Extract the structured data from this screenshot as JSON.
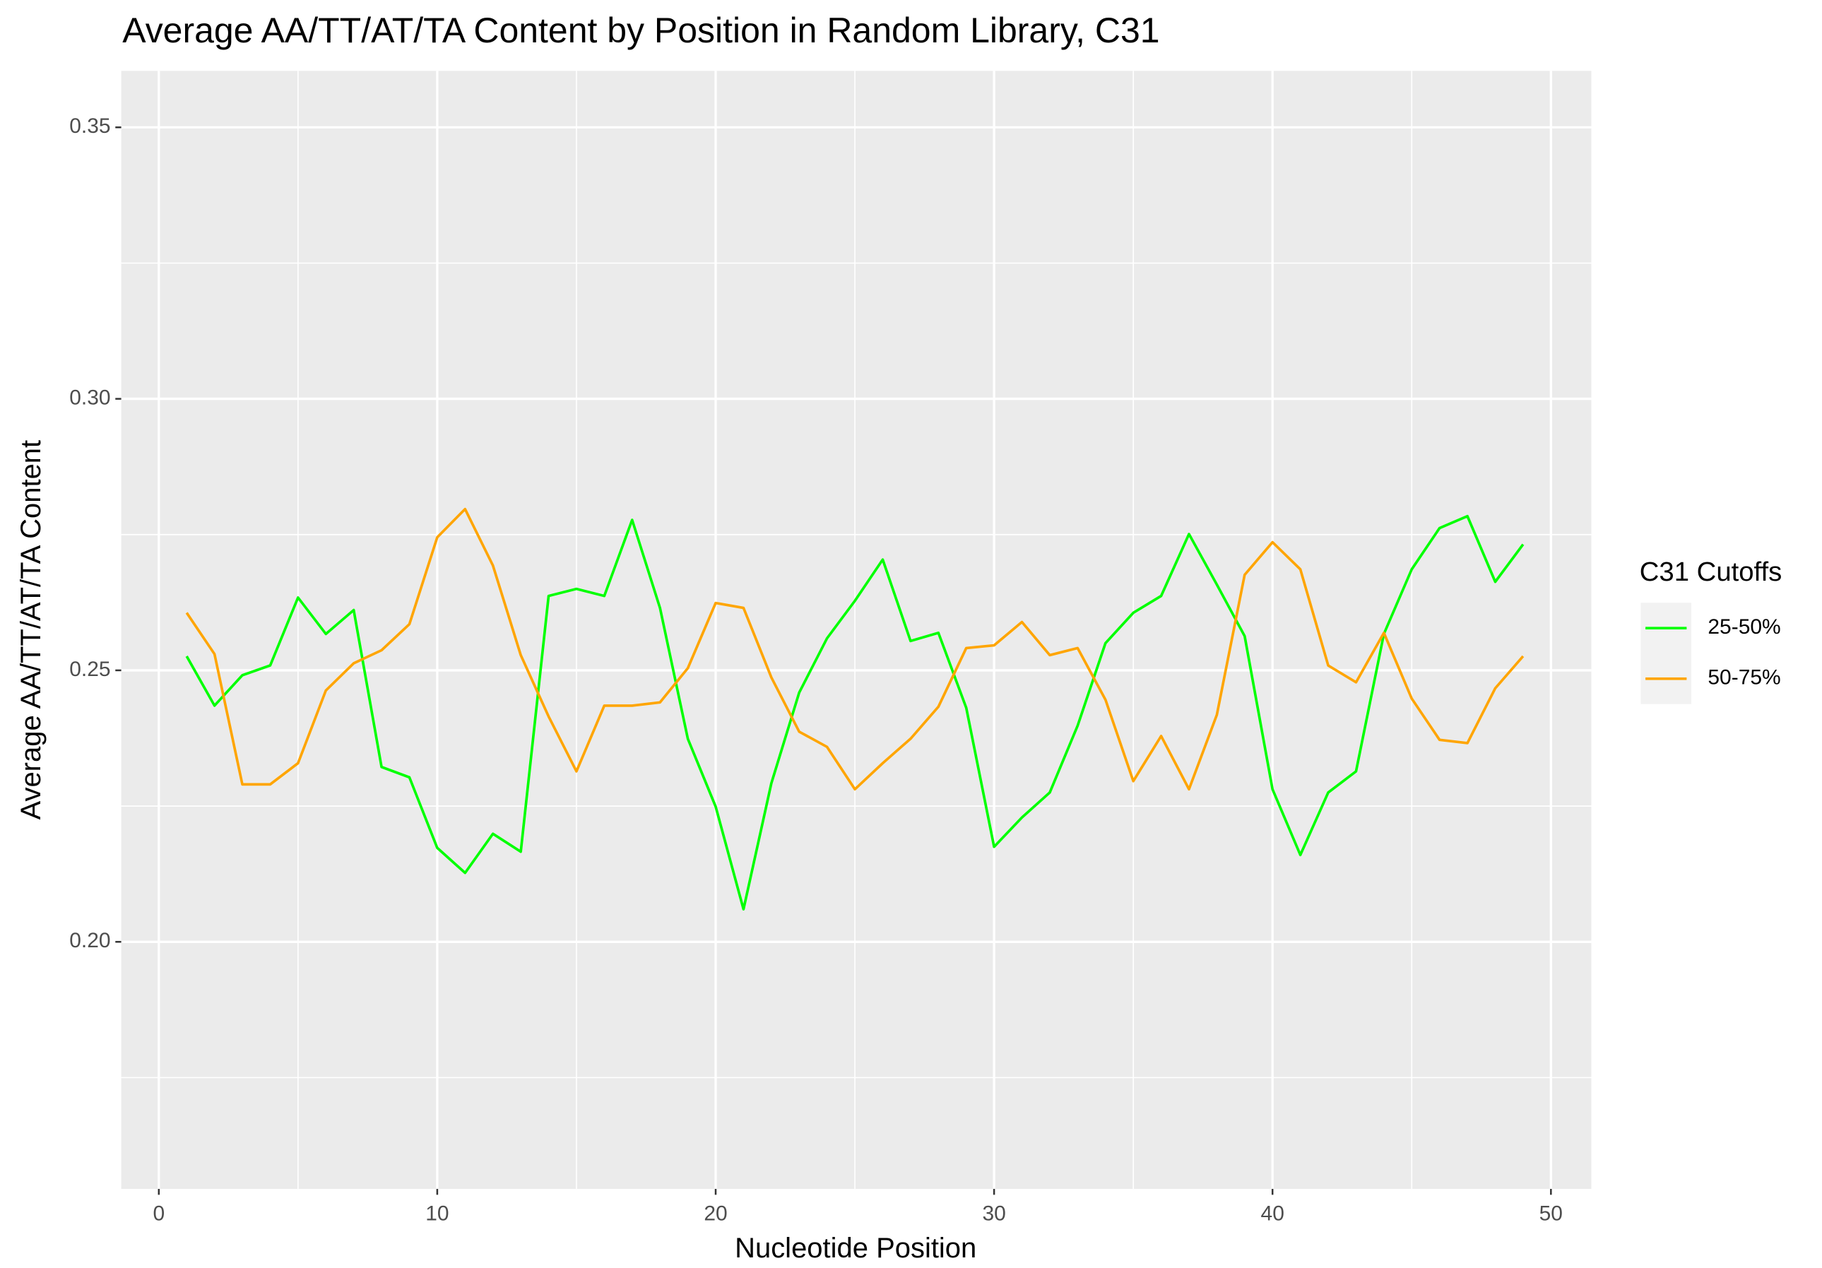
{
  "chart_data": {
    "type": "line",
    "title": "Average AA/TT/AT/TA Content by Position in Random Library, C31",
    "x_label": "Nucleotide Position",
    "y_label": "Average AA/TT/AT/TA Content",
    "legend_title": "C31 Cutoffs",
    "legend_position": "right",
    "grid": true,
    "background": "#ebebeb",
    "x": [
      1,
      2,
      3,
      4,
      5,
      6,
      7,
      8,
      9,
      10,
      11,
      12,
      13,
      14,
      15,
      16,
      17,
      18,
      19,
      20,
      21,
      22,
      23,
      24,
      25,
      26,
      27,
      28,
      29,
      30,
      31,
      32,
      33,
      34,
      35,
      36,
      37,
      38,
      39,
      40,
      41,
      42,
      43,
      44,
      45,
      46,
      47,
      48,
      49
    ],
    "series": [
      {
        "name": "25-50%",
        "color": "#00ff00",
        "values": [
          0.2526,
          0.2435,
          0.2491,
          0.2509,
          0.2634,
          0.2567,
          0.2611,
          0.2322,
          0.2303,
          0.2173,
          0.2127,
          0.2199,
          0.2166,
          0.2637,
          0.265,
          0.2637,
          0.2777,
          0.2615,
          0.2374,
          0.2249,
          0.206,
          0.2292,
          0.2459,
          0.2559,
          0.2628,
          0.2704,
          0.2554,
          0.2569,
          0.2431,
          0.2175,
          0.2229,
          0.2275,
          0.2398,
          0.255,
          0.2606,
          0.2637,
          0.2751,
          0.2658,
          0.2563,
          0.2281,
          0.216,
          0.2275,
          0.2314,
          0.2567,
          0.2686,
          0.2762,
          0.2784,
          0.2663,
          0.2732
        ]
      },
      {
        "name": "50-75%",
        "color": "#ffa500",
        "values": [
          0.2606,
          0.253,
          0.229,
          0.229,
          0.2329,
          0.2463,
          0.2513,
          0.2537,
          0.2585,
          0.2745,
          0.2797,
          0.2693,
          0.2528,
          0.2415,
          0.2314,
          0.2435,
          0.2435,
          0.2441,
          0.2504,
          0.2624,
          0.2615,
          0.2487,
          0.2387,
          0.2359,
          0.2281,
          0.2329,
          0.2374,
          0.2433,
          0.2541,
          0.2546,
          0.2589,
          0.2528,
          0.2541,
          0.2446,
          0.2296,
          0.2379,
          0.2281,
          0.2418,
          0.2676,
          0.2736,
          0.2686,
          0.2509,
          0.2478,
          0.2569,
          0.2448,
          0.2372,
          0.2366,
          0.2467,
          0.2526
        ]
      }
    ],
    "xlim": [
      -1.35,
      51.45
    ],
    "ylim": [
      0.1545,
      0.3604
    ],
    "xticks": [
      0,
      10,
      20,
      30,
      40,
      50
    ],
    "yticks": [
      {
        "value": 0.2,
        "label": "0.20"
      },
      0.25,
      {
        "value": 0.3,
        "label": "0.30"
      },
      0.35
    ],
    "minor_xticks": [
      5,
      15,
      25,
      35,
      45
    ],
    "minor_yticks": [
      0.175,
      0.225,
      0.275,
      0.325
    ]
  }
}
